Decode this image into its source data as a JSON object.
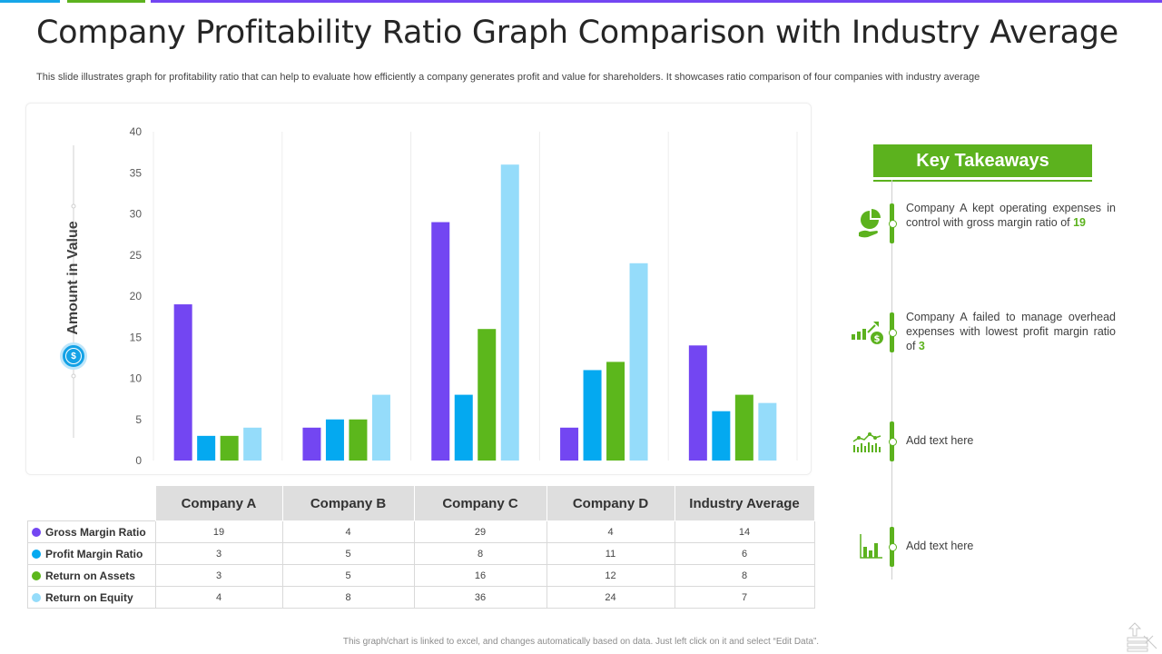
{
  "title": "Company Profitability Ratio Graph Comparison with Industry Average",
  "subtitle": "This slide illustrates graph for profitability ratio that can help to evaluate how efficiently a company generates profit and value for shareholders. It showcases ratio comparison of four companies with industry average",
  "colors": {
    "gross_margin": "#7346f2",
    "profit_margin": "#04a9f0",
    "return_assets": "#5cb71c",
    "return_equity": "#95dcfa",
    "accent_green": "#5cb21e",
    "topbar_blue": "#16a6e8",
    "topbar_green": "#5cb21e",
    "topbar_purple": "#7346f2"
  },
  "chart_data": {
    "type": "bar",
    "categories": [
      "Company A",
      "Company B",
      "Company C",
      "Company D",
      "Industry Average"
    ],
    "series": [
      {
        "name": "Gross Margin Ratio",
        "values": [
          19,
          4,
          29,
          4,
          14
        ]
      },
      {
        "name": "Profit Margin Ratio",
        "values": [
          3,
          5,
          8,
          11,
          6
        ]
      },
      {
        "name": "Return on Assets",
        "values": [
          3,
          5,
          16,
          12,
          8
        ]
      },
      {
        "name": "Return on Equity",
        "values": [
          4,
          8,
          36,
          24,
          7
        ]
      }
    ],
    "ylabel": "Amount in Value",
    "ylim": [
      0,
      40
    ],
    "yticks": [
      0,
      5,
      10,
      15,
      20,
      25,
      30,
      35,
      40
    ],
    "grid": "vertical category separators"
  },
  "key_takeaways": {
    "heading": "Key Takeaways",
    "items": [
      {
        "icon": "pie-chart-hand-icon",
        "text": "Company A kept operating expenses in control with gross margin ratio of ",
        "highlight": "19"
      },
      {
        "icon": "growth-dollar-icon",
        "text": "Company A failed to manage overhead expenses with lowest profit margin ratio of ",
        "highlight": "3"
      },
      {
        "icon": "line-chart-icon",
        "text": "Add text here",
        "highlight": ""
      },
      {
        "icon": "bar-chart-icon",
        "text": "Add text here",
        "highlight": ""
      }
    ]
  },
  "footnote": "This graph/chart is linked to excel, and changes automatically based on data. Just left click on it and select “Edit Data”."
}
